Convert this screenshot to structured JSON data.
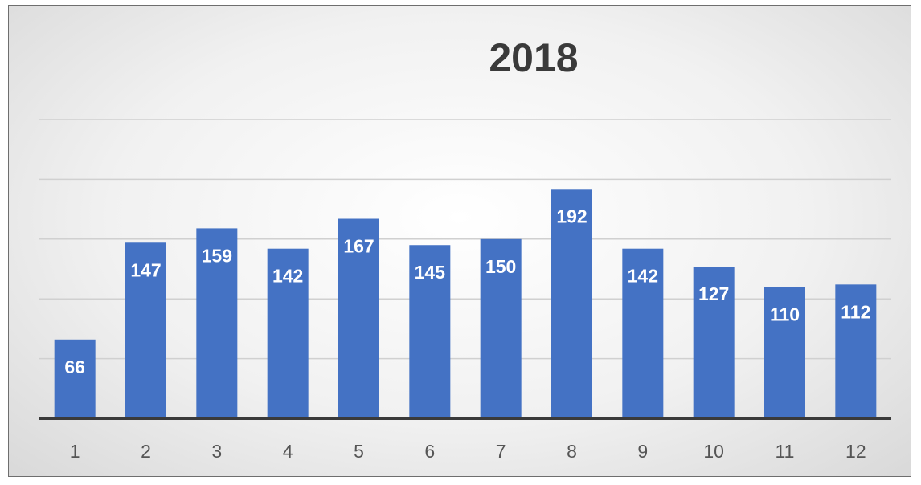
{
  "chart_data": {
    "type": "bar",
    "title": "2018",
    "categories": [
      "1",
      "2",
      "3",
      "4",
      "5",
      "6",
      "7",
      "8",
      "9",
      "10",
      "11",
      "12"
    ],
    "values": [
      66,
      147,
      159,
      142,
      167,
      145,
      150,
      192,
      142,
      127,
      110,
      112
    ],
    "xlabel": "",
    "ylabel": "",
    "ylim": [
      0,
      250
    ],
    "grid": true,
    "legend": "none",
    "bar_color": "#4472c4",
    "label_color": "#ffffff"
  }
}
